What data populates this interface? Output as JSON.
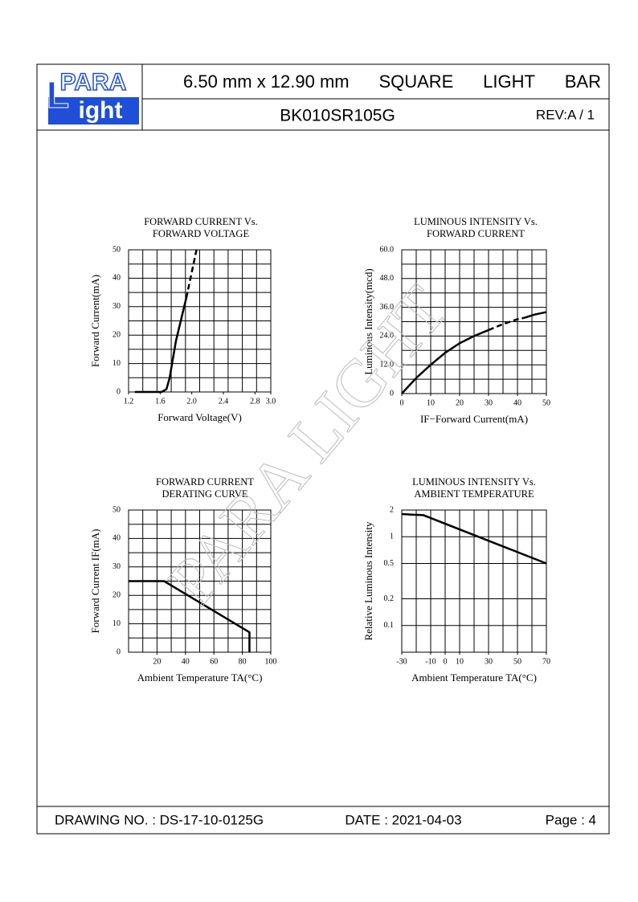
{
  "header": {
    "logo": {
      "line1": "PARA",
      "initial": "L",
      "line2": "ight"
    },
    "title": [
      "6.50 mm x 12.90 mm",
      "SQUARE",
      "LIGHT",
      "BAR"
    ],
    "part_number": "BK010SR105G",
    "revision": "REV:A / 1"
  },
  "watermark": "PARA LIGHT",
  "chart_data": [
    {
      "type": "line",
      "title": [
        "FORWARD CURRENT Vs.",
        "FORWARD VOLTAGE"
      ],
      "x_label": "Forward Voltage(V)",
      "y_label": "Forward Current(mA)",
      "xlim": [
        1.2,
        3.0
      ],
      "xticks": [
        1.2,
        1.6,
        {
          "value": 2,
          "label": "2.0"
        },
        2.4,
        2.8,
        {
          "value": 3,
          "label": "3.0"
        }
      ],
      "ylim": [
        0,
        50
      ],
      "yticks": [
        0,
        10,
        20,
        30,
        40,
        50
      ],
      "grid_divisions": {
        "x": 10,
        "y": 10
      },
      "color": "#000000",
      "series": [
        {
          "x": [
            1.28,
            1.62,
            1.68,
            1.72,
            1.8,
            1.93
          ],
          "values": [
            0,
            0,
            1,
            5,
            18,
            33
          ],
          "dashed": false
        },
        {
          "x": [
            1.93,
            2.06
          ],
          "values": [
            33,
            50
          ],
          "dashed": true
        }
      ]
    },
    {
      "type": "line",
      "title": [
        "LUMINOUS INTENSITY Vs.",
        "FORWARD CURRENT"
      ],
      "x_label": "IF−Forward Current(mA)",
      "y_label": "Luminous Intensity(mcd)",
      "xlim": [
        0,
        50
      ],
      "xticks": [
        0,
        10,
        20,
        30,
        40,
        50
      ],
      "ylim": [
        0,
        60
      ],
      "yticks": [
        0,
        {
          "value": 12,
          "label": "12.0"
        },
        {
          "value": 24,
          "label": "24.0"
        },
        {
          "value": 36,
          "label": "36.0"
        },
        {
          "value": 48,
          "label": "48.0"
        },
        {
          "value": 60,
          "label": "60.0"
        }
      ],
      "grid_divisions": {
        "x": 10,
        "y": 10
      },
      "color": "#000000",
      "series": [
        {
          "x": [
            0,
            5,
            10,
            15,
            20,
            25,
            30
          ],
          "values": [
            0,
            6.5,
            12,
            17,
            21,
            24,
            26.5
          ],
          "dashed": false
        },
        {
          "x": [
            30,
            35,
            40,
            42
          ],
          "values": [
            26.5,
            29,
            31,
            31.5
          ],
          "dashed": true
        },
        {
          "x": [
            42,
            46,
            50
          ],
          "values": [
            31.5,
            33,
            34
          ],
          "dashed": false
        }
      ]
    },
    {
      "type": "line",
      "title": [
        "FORWARD CURRENT",
        "DERATING CURVE"
      ],
      "x_label": "Ambient Temperature TA(°C)",
      "y_label": "Forward Current IF(mA)",
      "xlim": [
        0,
        100
      ],
      "xticks": [
        20,
        40,
        60,
        80,
        100
      ],
      "ylim": [
        0,
        50
      ],
      "yticks": [
        0,
        10,
        20,
        30,
        40,
        50
      ],
      "grid_divisions": {
        "x": 10,
        "y": 10
      },
      "color": "#000000",
      "series": [
        {
          "x": [
            0,
            25,
            85,
            85
          ],
          "values": [
            25,
            25,
            7,
            0
          ],
          "dashed": false
        }
      ]
    },
    {
      "type": "line",
      "title": [
        "LUMINOUS INTENSITY Vs.",
        "AMBIENT TEMPERATURE"
      ],
      "x_label": "Ambient Temperature TA(°C)",
      "y_label": "Relative Luminous Intensity",
      "xlim": [
        -30,
        70
      ],
      "xticks": [
        -30,
        -10,
        0,
        10,
        30,
        50,
        70
      ],
      "ylim": [
        0.05,
        2
      ],
      "yscale": "log",
      "yticks": [
        2,
        1,
        0.5,
        0.2,
        0.1
      ],
      "grid_divisions": {
        "x": 10
      },
      "color": "#000000",
      "series": [
        {
          "x": [
            -30,
            -15,
            70
          ],
          "values": [
            1.8,
            1.75,
            0.5
          ],
          "dashed": false
        }
      ]
    }
  ],
  "footer": {
    "drawing_no": "DRAWING NO. : DS-17-10-0125G",
    "date": "DATE : 2021-04-03",
    "page": "Page : 4"
  }
}
